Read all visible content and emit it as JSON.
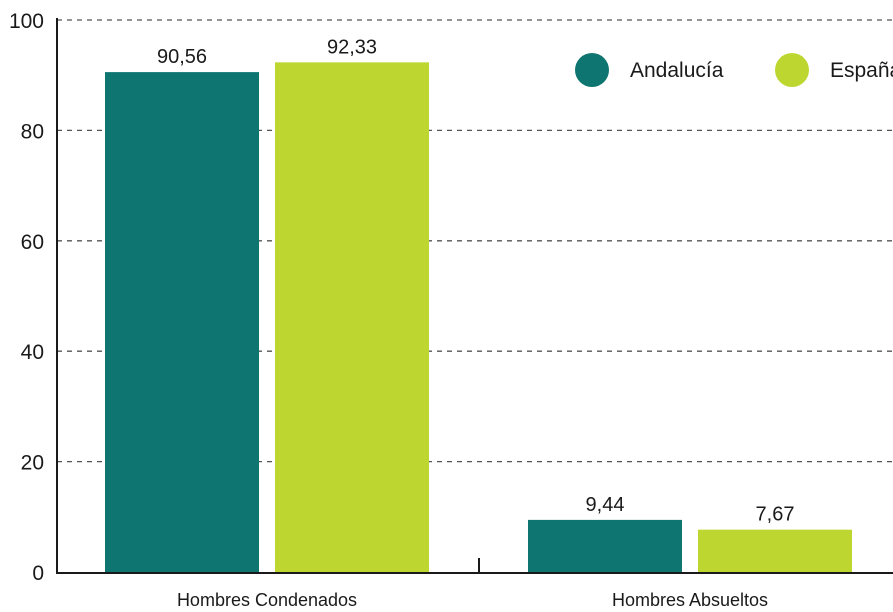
{
  "chart_data": {
    "type": "bar",
    "categories": [
      "Hombres Condenados",
      "Hombres Absueltos"
    ],
    "series": [
      {
        "name": "Andalucía",
        "values": [
          90.56,
          9.44
        ],
        "labels": [
          "90,56",
          "9,44"
        ],
        "color": "#0e7571"
      },
      {
        "name": "España",
        "values": [
          92.33,
          7.67
        ],
        "labels": [
          "92,33",
          "7,67"
        ],
        "color": "#bed730"
      }
    ],
    "ylim": [
      0,
      100
    ],
    "yticks": [
      0,
      20,
      40,
      60,
      80,
      100
    ],
    "grid": true,
    "grid_style": "dashed",
    "legend_position": "top-right",
    "title": "",
    "xlabel": "",
    "ylabel": ""
  },
  "colors": {
    "axis": "#1a1a1a",
    "grid": "#555555",
    "background": "#ffffff"
  }
}
